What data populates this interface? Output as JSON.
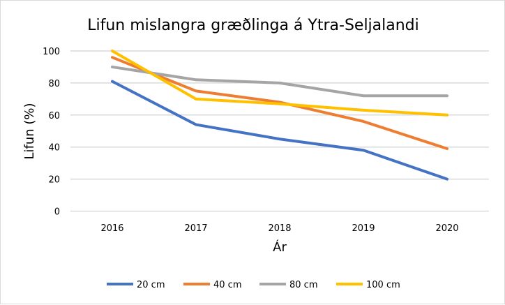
{
  "chart_data": {
    "type": "line",
    "title": "Lifun mislangra græðlinga á Ytra-Seljalandi",
    "xlabel": "Ár",
    "ylabel": "Lifun (%)",
    "categories": [
      "2016",
      "2017",
      "2018",
      "2019",
      "2020"
    ],
    "ylim": [
      0,
      100
    ],
    "yticks": [
      "0",
      "20",
      "40",
      "60",
      "80",
      "100"
    ],
    "grid": true,
    "legend_position": "bottom",
    "series": [
      {
        "name": "20 cm",
        "color": "#4472c4",
        "values": [
          81,
          54,
          45,
          38,
          20
        ]
      },
      {
        "name": "40 cm",
        "color": "#ed7d31",
        "values": [
          96,
          75,
          68,
          56,
          39
        ]
      },
      {
        "name": "80 cm",
        "color": "#a5a5a5",
        "values": [
          90,
          82,
          80,
          72,
          72
        ]
      },
      {
        "name": "100 cm",
        "color": "#ffc000",
        "values": [
          100,
          70,
          67,
          63,
          60
        ]
      }
    ]
  }
}
